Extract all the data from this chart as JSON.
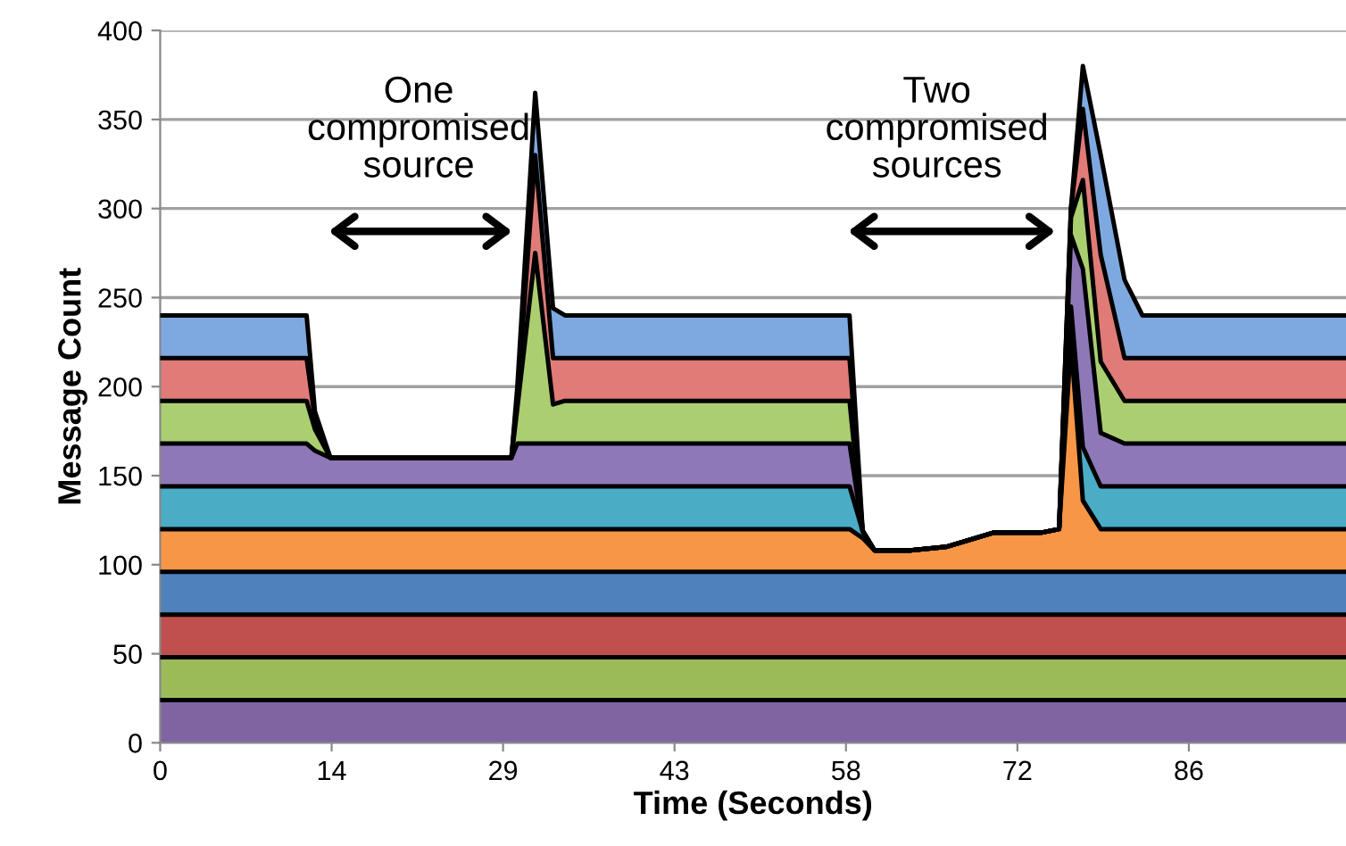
{
  "chart_data": {
    "type": "area",
    "stacked": true,
    "xlabel": "Time (Seconds)",
    "ylabel": "Message Count",
    "x": [
      0,
      12.3,
      13,
      14.3,
      29.5,
      30,
      31.5,
      33,
      34,
      57.9,
      59,
      60,
      63,
      66,
      70,
      74,
      75.5,
      76.5,
      77.5,
      79,
      81,
      82.5,
      99.6
    ],
    "series": [
      {
        "color": "#8064a2",
        "values": [
          24,
          24,
          24,
          24,
          24,
          24,
          24,
          24,
          24,
          24,
          24,
          24,
          24,
          24,
          24,
          24,
          24,
          24,
          24,
          24,
          24,
          24,
          24
        ]
      },
      {
        "color": "#9bbb59",
        "values": [
          24,
          24,
          24,
          24,
          24,
          24,
          24,
          24,
          24,
          24,
          24,
          24,
          24,
          24,
          24,
          24,
          24,
          24,
          24,
          24,
          24,
          24,
          24
        ]
      },
      {
        "color": "#c0504d",
        "values": [
          24,
          24,
          24,
          24,
          24,
          24,
          24,
          24,
          24,
          24,
          24,
          24,
          24,
          24,
          24,
          24,
          24,
          24,
          24,
          24,
          24,
          24,
          24
        ]
      },
      {
        "color": "#4f81bd",
        "values": [
          24,
          24,
          24,
          24,
          24,
          24,
          24,
          24,
          24,
          24,
          24,
          24,
          24,
          24,
          24,
          24,
          24,
          24,
          24,
          24,
          24,
          24,
          24
        ]
      },
      {
        "color": "#f79646",
        "values": [
          24,
          24,
          24,
          24,
          24,
          24,
          24,
          24,
          24,
          24,
          19,
          12,
          12,
          14,
          22,
          22,
          24,
          129,
          40,
          24,
          24,
          24,
          24
        ]
      },
      {
        "color": "#4bacc6",
        "values": [
          24,
          24,
          24,
          24,
          24,
          24,
          24,
          24,
          24,
          24,
          4,
          0,
          0,
          0,
          0,
          0,
          0,
          20,
          30,
          24,
          24,
          24,
          24
        ]
      },
      {
        "color": "#8f78b8",
        "values": [
          24,
          24,
          20,
          16,
          16,
          24,
          24,
          24,
          24,
          24,
          0,
          0,
          0,
          0,
          0,
          0,
          0,
          40,
          100,
          30,
          24,
          24,
          24
        ]
      },
      {
        "color": "#abce70",
        "values": [
          24,
          24,
          12,
          0,
          0,
          20,
          107,
          22,
          24,
          24,
          0,
          0,
          0,
          0,
          0,
          0,
          0,
          10,
          50,
          40,
          24,
          24,
          24
        ]
      },
      {
        "color": "#e07b78",
        "values": [
          24,
          24,
          6,
          0,
          0,
          6,
          55,
          26,
          24,
          24,
          0,
          0,
          0,
          0,
          0,
          0,
          0,
          5,
          40,
          60,
          24,
          24,
          24
        ]
      },
      {
        "color": "#7ea9e0",
        "values": [
          24,
          24,
          4,
          0,
          0,
          6,
          35,
          28,
          24,
          24,
          0,
          0,
          0,
          0,
          0,
          0,
          0,
          0,
          24,
          56,
          44,
          24,
          24
        ]
      }
    ],
    "xlim": [
      0,
      99.6
    ],
    "xticks": [
      0,
      {
        "value": 14.4,
        "label": "14"
      },
      {
        "value": 28.8,
        "label": "29"
      },
      {
        "value": 43.2,
        "label": "43"
      },
      {
        "value": 57.6,
        "label": "58"
      },
      72,
      {
        "value": 86.4,
        "label": "86"
      }
    ],
    "ylim": [
      0,
      400
    ],
    "yticks": [
      0,
      50,
      100,
      150,
      200,
      250,
      300,
      350,
      400
    ],
    "grid": "y",
    "annotations": [
      "One\ncompromised\nsource",
      "Two\ncompromised\nsources"
    ]
  }
}
